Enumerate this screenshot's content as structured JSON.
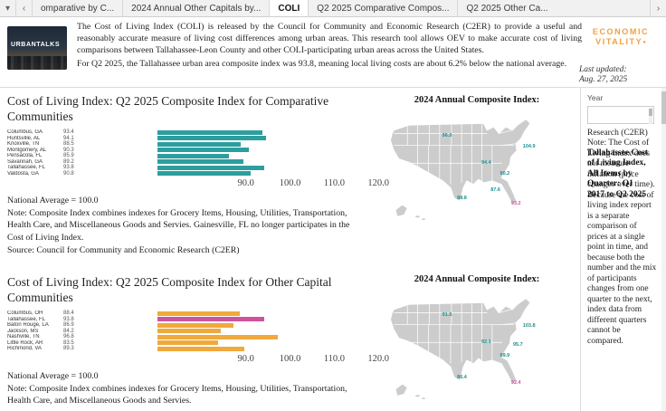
{
  "tabbar": {
    "sheet_menu_icon": "▾",
    "prev_icon": "‹",
    "next_icon": "›",
    "tabs": [
      {
        "label": "omparative by C...",
        "active": false
      },
      {
        "label": "2024 Annual Other Capitals by...",
        "active": false
      },
      {
        "label": "COLI",
        "active": true
      },
      {
        "label": "Q2 2025 Comparative Compos...",
        "active": false
      },
      {
        "label": "Q2 2025 Other Ca...",
        "active": false
      }
    ]
  },
  "header": {
    "thumb_text": "URBANTALKS",
    "intro_p1": "The Cost of Living Index (COLI) is released by the Council for Community and Economic Research (C2ER) to provide a useful and reasonably accurate measure of living cost differences among urban areas. This research tool allows OEV to make accurate cost of living comparisons between Tallahassee-Leon County and other COLI-participating urban areas across the United States.",
    "intro_p2": "For Q2 2025, the Tallahassee urban area composite index was 93.8, meaning local living costs are about 6.2% below the national average.",
    "logo_line1": "ECONOMIC",
    "logo_line2": "VITALITY",
    "logo_dot": "●",
    "logo_color": "#F2A13C",
    "last_updated_label": "Last updated:",
    "last_updated_date": "Aug. 27, 2025"
  },
  "sidebar": {
    "year_label": "Year",
    "note_text": "Research (C2ER) Note: The Cost of Living Index does not measure inflation (price changes over time). Because the cost of living index report is a separate comparison of prices at a single point in time, and because both the number and the mix of participants changes from one quarter to the next, index data from different quarters cannot be compared.",
    "overlay_title": "Tallahassee Cost of Living Index, All Items by Quarter: Q1 2017 to Q2 2025"
  },
  "colors": {
    "teal_bar": "#2D9E9E",
    "orange_bar": "#F0A93C",
    "pink_highlight": "#CE539E",
    "map_state_fill": "#CCCCCC",
    "logo_orange": "#F2A13C"
  },
  "chart_data": [
    {
      "type": "bar",
      "orientation": "horizontal",
      "title": "Cost of Living Index: Q2 2025 Composite Index for Comparative Communities",
      "categories": [
        "Columbus, GA",
        "Huntsville, AL",
        "Knoxville, TN",
        "Montgomery, AL",
        "Pensacola, FL",
        "Savannah, GA",
        "Tallahassee, FL",
        "Valdosta, GA"
      ],
      "values": [
        93.4,
        94.1,
        88.5,
        90.3,
        85.9,
        89.2,
        93.8,
        90.8
      ],
      "bar_color": "#2D9E9E",
      "highlight_index": -1,
      "highlight_color": "#CE539E",
      "xlabel": "",
      "ylabel": "",
      "xlim": [
        70,
        122
      ],
      "ticks": [
        90,
        100,
        110,
        120
      ],
      "tick_labels": [
        "90.0",
        "100.0",
        "110.0",
        "120.0"
      ],
      "grid": false,
      "notes": [
        "National Average = 100.0",
        "Note: Composite Index combines indexes for Grocery Items, Housing, Utilities, Transportation, Health Care, and Miscellaneous Goods and Servies. Gainesville, FL no longer participates in the Cost of Living Index.",
        "Source: Council for Community and Economic Research (C2ER)"
      ]
    },
    {
      "type": "bar",
      "orientation": "horizontal",
      "title": "Cost of Living Index: Q2 2025 Composite Index for Other Capital Communities",
      "categories": [
        "Columbus, OH",
        "Tallahassee, FL",
        "Baton Rouge, LA",
        "Jackson, MS",
        "Nashville, TN",
        "Little Rock, AR",
        "Richmond, VA"
      ],
      "values": [
        88.4,
        93.8,
        86.9,
        84.2,
        96.8,
        83.5,
        89.3
      ],
      "bar_color": "#F0A93C",
      "highlight_index": 1,
      "highlight_color": "#CE539E",
      "xlabel": "",
      "ylabel": "",
      "xlim": [
        70,
        122
      ],
      "ticks": [
        90,
        100,
        110,
        120
      ],
      "tick_labels": [
        "90.0",
        "100.0",
        "110.0",
        "120.0"
      ],
      "grid": false,
      "notes": [
        "National Average = 100.0",
        "Note: Composite Index combines indexes for Grocery Items, Housing, Utilities, Transportation, Health Care, and Miscellaneous Goods and Servies."
      ]
    },
    {
      "type": "scatter",
      "subtype": "us-map-labels",
      "title": "2024 Annual Composite Index:",
      "label_color": "#1D8F8F",
      "highlight_color": "#CE539E",
      "labels": [
        {
          "text": "96.0",
          "x": 34,
          "y": 22
        },
        {
          "text": "104.9",
          "x": 78,
          "y": 30
        },
        {
          "text": "94.4",
          "x": 55,
          "y": 42
        },
        {
          "text": "90.2",
          "x": 65,
          "y": 50
        },
        {
          "text": "87.6",
          "x": 60,
          "y": 62
        },
        {
          "text": "88.8",
          "x": 42,
          "y": 68
        },
        {
          "text": "93.2",
          "x": 71,
          "y": 72,
          "highlight": true
        }
      ]
    },
    {
      "type": "scatter",
      "subtype": "us-map-labels",
      "title": "2024 Annual Composite Index:",
      "label_color": "#1D8F8F",
      "highlight_color": "#CE539E",
      "labels": [
        {
          "text": "91.5",
          "x": 34,
          "y": 22
        },
        {
          "text": "103.8",
          "x": 78,
          "y": 30
        },
        {
          "text": "92.1",
          "x": 55,
          "y": 42
        },
        {
          "text": "95.7",
          "x": 72,
          "y": 44
        },
        {
          "text": "89.9",
          "x": 65,
          "y": 52
        },
        {
          "text": "86.4",
          "x": 42,
          "y": 68
        },
        {
          "text": "92.4",
          "x": 71,
          "y": 72,
          "highlight": true
        }
      ]
    }
  ]
}
